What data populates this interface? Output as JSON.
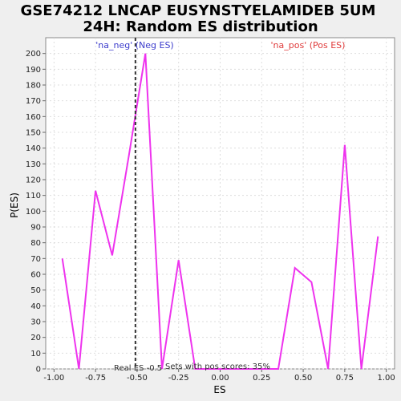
{
  "chart_data": {
    "type": "line",
    "title_lines": [
      "GSE74212 LNCAP EUSYNSTYELAMIDEB 5UM",
      "24H: Random ES distribution"
    ],
    "xlabel": "ES",
    "ylabel": "P(ES)",
    "xlim": [
      -1.05,
      1.05
    ],
    "ylim": [
      0,
      210
    ],
    "x_ticks": [
      -1.0,
      -0.75,
      -0.5,
      -0.25,
      0.0,
      0.25,
      0.5,
      0.75,
      1.0
    ],
    "x_tick_labels": [
      "-1.00",
      "-0.75",
      "-0.50",
      "-0.25",
      "0.00",
      "0.25",
      "0.50",
      "0.75",
      "1.00"
    ],
    "y_ticks": [
      0,
      10,
      20,
      30,
      40,
      50,
      60,
      70,
      80,
      90,
      100,
      110,
      120,
      130,
      140,
      150,
      160,
      170,
      180,
      190,
      200
    ],
    "grid": true,
    "series": [
      {
        "color": "#ee33ee",
        "x": [
          -0.95,
          -0.85,
          -0.75,
          -0.65,
          -0.55,
          -0.45,
          -0.35,
          -0.25,
          -0.15,
          -0.05,
          0.05,
          0.15,
          0.25,
          0.35,
          0.45,
          0.55,
          0.65,
          0.75,
          0.85,
          0.95
        ],
        "y": [
          70,
          0,
          113,
          72,
          135,
          200,
          0,
          69,
          0,
          0,
          0,
          0,
          0,
          0,
          64,
          55,
          0,
          142,
          0,
          84
        ]
      }
    ],
    "vline": {
      "x": -0.51,
      "label": "Real ES -0.5"
    },
    "legend": {
      "neg": "'na_neg' (Neg ES)",
      "pos": "'na_pos' (Pos ES)"
    },
    "annotation": "Sets with pos scores: 35%"
  }
}
